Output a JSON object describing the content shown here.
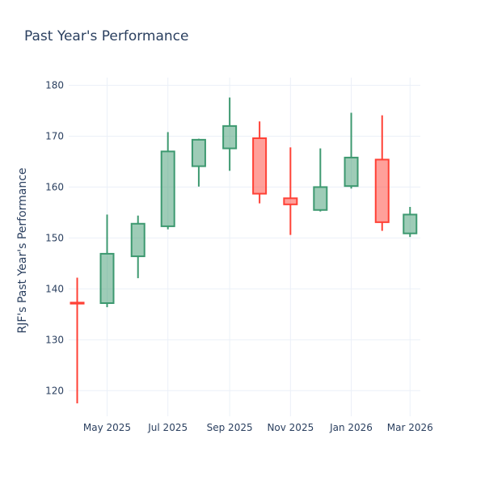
{
  "chart_data": {
    "type": "candlestick",
    "title": "Past Year's Performance",
    "xlabel": "",
    "ylabel": "RJF's Past Year's Performance",
    "ylim": [
      115,
      181
    ],
    "yticks": [
      120,
      130,
      140,
      150,
      160,
      170,
      180
    ],
    "xticks": [
      {
        "date": "2025-05-01",
        "label": "May 2025"
      },
      {
        "date": "2025-07-01",
        "label": "Jul 2025"
      },
      {
        "date": "2025-09-01",
        "label": "Sep 2025"
      },
      {
        "date": "2025-11-01",
        "label": "Nov 2025"
      },
      {
        "date": "2026-01-01",
        "label": "Jan 2026"
      },
      {
        "date": "2026-03-01",
        "label": "Mar 2026"
      }
    ],
    "grid": true,
    "colors": {
      "increasing": "#3D9970",
      "decreasing": "#FF4136"
    },
    "candles": [
      {
        "date": "2025-04-01",
        "open": 137.3,
        "high": 142.2,
        "low": 117.5,
        "close": 137.1
      },
      {
        "date": "2025-05-01",
        "open": 137.2,
        "high": 154.6,
        "low": 136.4,
        "close": 146.9
      },
      {
        "date": "2025-06-01",
        "open": 146.4,
        "high": 154.4,
        "low": 142.1,
        "close": 152.8
      },
      {
        "date": "2025-07-01",
        "open": 152.3,
        "high": 170.8,
        "low": 151.7,
        "close": 167.0
      },
      {
        "date": "2025-08-01",
        "open": 164.1,
        "high": 169.5,
        "low": 160.1,
        "close": 169.3
      },
      {
        "date": "2025-09-01",
        "open": 167.6,
        "high": 177.6,
        "low": 163.2,
        "close": 172.0
      },
      {
        "date": "2025-10-01",
        "open": 169.6,
        "high": 172.9,
        "low": 156.8,
        "close": 158.7
      },
      {
        "date": "2025-11-01",
        "open": 157.8,
        "high": 167.8,
        "low": 150.6,
        "close": 156.6
      },
      {
        "date": "2025-12-01",
        "open": 155.5,
        "high": 167.6,
        "low": 155.2,
        "close": 160.0
      },
      {
        "date": "2026-01-01",
        "open": 160.2,
        "high": 174.6,
        "low": 159.7,
        "close": 165.8
      },
      {
        "date": "2026-02-01",
        "open": 165.4,
        "high": 174.1,
        "low": 151.4,
        "close": 153.1
      },
      {
        "date": "2026-03-01",
        "open": 150.9,
        "high": 156.1,
        "low": 150.2,
        "close": 154.6
      }
    ]
  }
}
